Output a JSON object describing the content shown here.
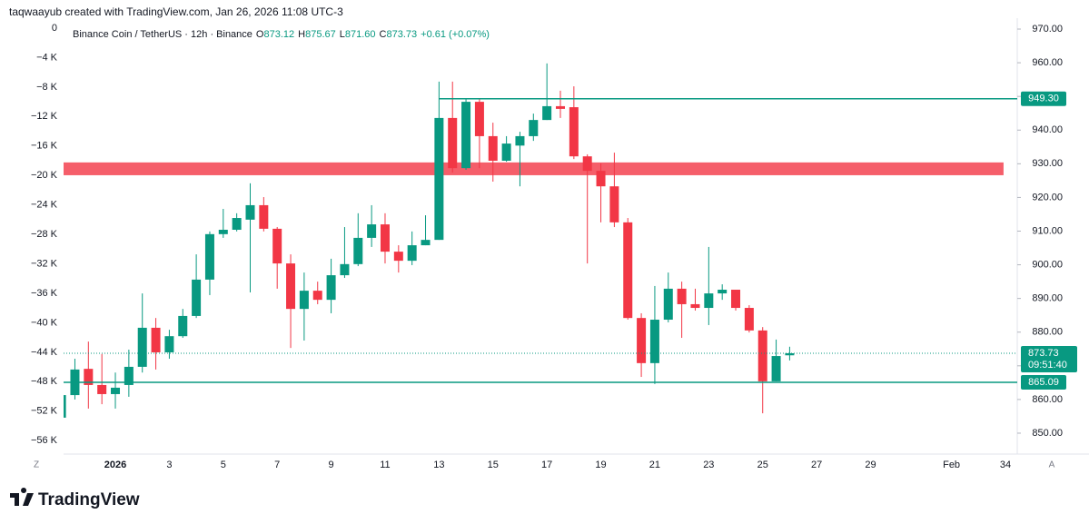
{
  "chart_data": {
    "type": "candlestick",
    "credit": "taqwaayub created with TradingView.com, Jan 26, 2026 11:08 UTC-3",
    "title": "Binance Coin / TetherUS · 12h · Binance",
    "legend": {
      "open_label": "O",
      "open": 873.12,
      "high_label": "H",
      "high": 875.67,
      "low_label": "L",
      "low": 871.6,
      "low_text": "871.60",
      "close_label": "C",
      "close": 873.73,
      "change": "+0.61 (+0.07%)"
    },
    "up_color": "#089981",
    "down_color": "#f23645",
    "x": [
      -1,
      -0.5,
      0,
      0.5,
      1,
      1.5,
      2,
      2.5,
      3,
      3.5,
      4,
      4.5,
      5,
      5.5,
      6,
      6.5,
      7,
      7.5,
      8,
      8.5,
      9,
      9.5,
      10,
      10.5,
      11,
      11.5,
      12,
      12.5,
      13,
      13.5,
      14,
      14.5,
      15,
      15.5,
      16,
      16.5,
      17,
      17.5,
      18,
      18.5,
      19,
      19.5,
      20,
      20.5,
      21,
      21.5,
      22,
      22.5,
      23,
      23.5,
      24,
      24.5,
      25,
      25.5,
      26
    ],
    "open": [
      854.6,
      861.3,
      869.1,
      864.3,
      861.6,
      864.3,
      869.7,
      881.3,
      874,
      878.8,
      884.8,
      895.6,
      909.1,
      910.4,
      913.4,
      917.7,
      910.7,
      900.4,
      886.9,
      892.3,
      889.6,
      896.9,
      900.2,
      908,
      912,
      903.9,
      901.2,
      905.8,
      907.4,
      943.6,
      928.7,
      948.4,
      938.2,
      930.9,
      935.4,
      938.2,
      943,
      947.1,
      946.8,
      932.2,
      927.9,
      923.3,
      912.6,
      884.2,
      870.8,
      883.7,
      892.9,
      888.3,
      887.2,
      891.5,
      892.6,
      887.2,
      880.5,
      865.4,
      873.12
    ],
    "high": [
      861.5,
      872.1,
      877.2,
      873.5,
      868,
      874.8,
      891.5,
      884.2,
      880.7,
      886.9,
      903.1,
      909.9,
      916.6,
      915.3,
      924.2,
      920.1,
      911.2,
      903.1,
      897.7,
      895,
      901.8,
      911.2,
      915.3,
      917.7,
      915.3,
      905.8,
      909.9,
      914.7,
      954.4,
      954.4,
      949.5,
      949.5,
      942.2,
      938.2,
      939.5,
      944.9,
      959.8,
      951.7,
      953,
      932.8,
      930.1,
      933.3,
      913.9,
      885.6,
      893.7,
      897.7,
      895,
      892.9,
      905.3,
      894.2,
      892.6,
      888,
      881.5,
      877.8,
      875.67
    ],
    "low": [
      854.5,
      860,
      857.3,
      858.6,
      857.3,
      860.8,
      868,
      868.9,
      872.1,
      878.3,
      884.2,
      891,
      908,
      909.9,
      891.8,
      909.9,
      892.9,
      875.3,
      877.5,
      888.3,
      885.6,
      896.1,
      899.6,
      905.3,
      900.4,
      897.7,
      899.9,
      905.8,
      907.4,
      927.4,
      928.2,
      928.7,
      924.7,
      930.6,
      923.3,
      936.8,
      943,
      943.6,
      931.4,
      900.4,
      912.6,
      911.2,
      883.7,
      866.7,
      864.6,
      882.9,
      878.3,
      886.4,
      882.1,
      889.6,
      886.4,
      879.9,
      855.9,
      865.4,
      871.6
    ],
    "close": [
      861.3,
      868.9,
      864.3,
      861.6,
      863.5,
      869.7,
      881.3,
      874,
      878.8,
      884.8,
      895.6,
      909.1,
      910.4,
      913.9,
      917.7,
      910.7,
      900.4,
      886.9,
      892.3,
      889.6,
      896.9,
      900.2,
      908,
      912,
      903.9,
      901.2,
      905.8,
      907.4,
      943.6,
      928.7,
      948.4,
      938.2,
      930.9,
      936,
      938.2,
      943,
      947.1,
      946.3,
      932.2,
      927.9,
      923.3,
      912.6,
      884.2,
      870.8,
      883.7,
      892.9,
      888.3,
      887.2,
      891.5,
      892.6,
      887.2,
      880.5,
      865.4,
      872.9,
      873.73
    ],
    "xlim": [
      -0.92,
      34.27
    ],
    "xticks": [
      {
        "value": 1,
        "label": "2026"
      },
      3,
      5,
      7,
      9,
      11,
      13,
      15,
      17,
      19,
      21,
      23,
      25,
      27,
      29,
      {
        "value": 32,
        "label": "Feb"
      },
      34
    ],
    "ylim": [
      843.79,
      973.24
    ],
    "yticks": [
      {
        "value": 850,
        "label": "850.00"
      },
      {
        "value": 860,
        "label": "860.00"
      },
      {
        "value": 870,
        "label": "870.00"
      },
      {
        "value": 880,
        "label": "880.00"
      },
      {
        "value": 890,
        "label": "890.00"
      },
      {
        "value": 900,
        "label": "900.00"
      },
      {
        "value": 910,
        "label": "910.00"
      },
      {
        "value": 920,
        "label": "920.00"
      },
      {
        "value": 930,
        "label": "930.00"
      },
      {
        "value": 940,
        "label": "940.00"
      },
      {
        "value": 950,
        "label": "950.00"
      },
      {
        "value": 960,
        "label": "960.00"
      },
      {
        "value": 970,
        "label": "970.00"
      }
    ],
    "y2lim": [
      -57830,
      1360
    ],
    "y2ticks": [
      0,
      {
        "value": -4000,
        "label": "−4 K"
      },
      {
        "value": -8000,
        "label": "−8 K"
      },
      {
        "value": -12000,
        "label": "−12 K"
      },
      {
        "value": -16000,
        "label": "−16 K"
      },
      {
        "value": -20000,
        "label": "−20 K"
      },
      {
        "value": -24000,
        "label": "−24 K"
      },
      {
        "value": -28000,
        "label": "−28 K"
      },
      {
        "value": -32000,
        "label": "−32 K"
      },
      {
        "value": -36000,
        "label": "−36 K"
      },
      {
        "value": -40000,
        "label": "−40 K"
      },
      {
        "value": -44000,
        "label": "−44 K"
      },
      {
        "value": -48000,
        "label": "−48 K"
      },
      {
        "value": -52000,
        "label": "−52 K"
      },
      {
        "value": -56000,
        "label": "−56 K"
      }
    ],
    "levels": [
      {
        "value": 949.3,
        "label": "949.30",
        "start": 13
      },
      {
        "value": 865.09,
        "label": "865.09"
      }
    ],
    "zone": {
      "low": 926.6,
      "high": 930.4,
      "end": 33.93,
      "color": "#f23645"
    },
    "last_price": {
      "value": 873.73,
      "label": "873.73",
      "countdown": "09:51:40"
    },
    "axis_buttons": [
      "Z",
      "A"
    ],
    "brand": "TradingView"
  }
}
